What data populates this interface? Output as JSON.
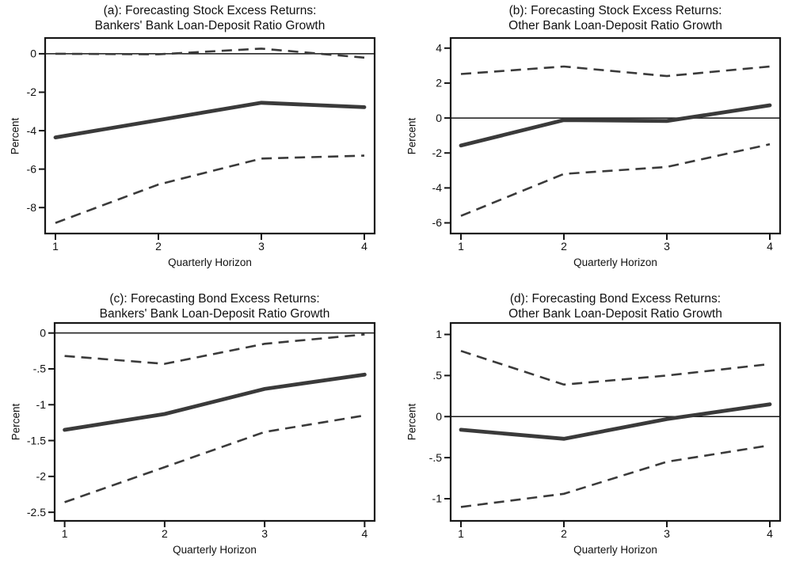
{
  "page": {
    "background": "#ffffff"
  },
  "colors": {
    "series_line": "#3a3a3a",
    "axis": "#161616",
    "text": "#111111"
  },
  "chart_data": [
    {
      "id": "a",
      "type": "line",
      "title_line1": "(a): Forecasting Stock Excess Returns:",
      "title_line2": "Bankers' Bank Loan-Deposit Ratio Growth",
      "ylabel": "Percent",
      "xlabel": "Quarterly Horizon",
      "x": [
        1,
        2,
        3,
        4
      ],
      "xlim": [
        0.9,
        4.1
      ],
      "ylim": [
        -9.35,
        0.82
      ],
      "xtick_values": [
        1,
        2,
        3,
        4
      ],
      "xtick_labels": [
        "1",
        "2",
        "3",
        "4"
      ],
      "ytick_values": [
        0,
        -2,
        -4,
        -6,
        -8
      ],
      "ytick_labels": [
        "0",
        "-2",
        "-4",
        "-6",
        "-8"
      ],
      "zero_line": true,
      "grid": false,
      "legend": "none",
      "series": [
        {
          "name": "upper-confidence-band",
          "style": "dashed",
          "values": [
            0.0,
            -0.03,
            0.27,
            -0.2
          ]
        },
        {
          "name": "lower-confidence-band",
          "style": "dashed",
          "values": [
            -8.8,
            -6.8,
            -5.45,
            -5.3
          ]
        },
        {
          "name": "point-estimate",
          "style": "solid",
          "values": [
            -4.35,
            -3.45,
            -2.55,
            -2.78
          ]
        }
      ]
    },
    {
      "id": "b",
      "type": "line",
      "title_line1": "(b): Forecasting Stock Excess Returns:",
      "title_line2": "Other Bank Loan-Deposit Ratio Growth",
      "ylabel": "Percent",
      "xlabel": "Quarterly Horizon",
      "x": [
        1,
        2,
        3,
        4
      ],
      "xlim": [
        0.9,
        4.1
      ],
      "ylim": [
        -6.61,
        4.58
      ],
      "xtick_values": [
        1,
        2,
        3,
        4
      ],
      "xtick_labels": [
        "1",
        "2",
        "3",
        "4"
      ],
      "ytick_values": [
        4,
        2,
        0,
        -2,
        -4,
        -6
      ],
      "ytick_labels": [
        "4",
        "2",
        "0",
        "-2",
        "-4",
        "-6"
      ],
      "zero_line": true,
      "grid": false,
      "legend": "none",
      "series": [
        {
          "name": "upper-confidence-band",
          "style": "dashed",
          "values": [
            2.52,
            2.95,
            2.4,
            2.95
          ]
        },
        {
          "name": "lower-confidence-band",
          "style": "dashed",
          "values": [
            -5.6,
            -3.2,
            -2.8,
            -1.5
          ]
        },
        {
          "name": "point-estimate",
          "style": "solid",
          "values": [
            -1.57,
            -0.12,
            -0.17,
            0.73
          ]
        }
      ]
    },
    {
      "id": "c",
      "type": "line",
      "title_line1": "(c): Forecasting Bond Excess Returns:",
      "title_line2": "Bankers' Bank Loan-Deposit Ratio Growth",
      "ylabel": "Percent",
      "xlabel": "Quarterly Horizon",
      "x": [
        1,
        2,
        3,
        4
      ],
      "xlim": [
        0.9,
        4.1
      ],
      "ylim": [
        -2.62,
        0.14
      ],
      "xtick_values": [
        1,
        2,
        3,
        4
      ],
      "xtick_labels": [
        "1",
        "2",
        "3",
        "4"
      ],
      "ytick_values": [
        0,
        -0.5,
        -1,
        -1.5,
        -2,
        -2.5
      ],
      "ytick_labels": [
        "0",
        "-.5",
        "-1",
        "-1.5",
        "-2",
        "-2.5"
      ],
      "zero_line": true,
      "grid": false,
      "legend": "none",
      "series": [
        {
          "name": "upper-confidence-band",
          "style": "dashed",
          "values": [
            -0.32,
            -0.43,
            -0.15,
            -0.02
          ]
        },
        {
          "name": "lower-confidence-band",
          "style": "dashed",
          "values": [
            -2.36,
            -1.87,
            -1.38,
            -1.15
          ]
        },
        {
          "name": "point-estimate",
          "style": "solid",
          "values": [
            -1.35,
            -1.13,
            -0.78,
            -0.58
          ]
        }
      ]
    },
    {
      "id": "d",
      "type": "line",
      "title_line1": "(d): Forecasting Bond Excess Returns:",
      "title_line2": "Other Bank Loan-Deposit Ratio Growth",
      "ylabel": "Percent",
      "xlabel": "Quarterly Horizon",
      "x": [
        1,
        2,
        3,
        4
      ],
      "xlim": [
        0.9,
        4.1
      ],
      "ylim": [
        -1.27,
        1.14
      ],
      "xtick_values": [
        1,
        2,
        3,
        4
      ],
      "xtick_labels": [
        "1",
        "2",
        "3",
        "4"
      ],
      "ytick_values": [
        1,
        0.5,
        0,
        -0.5,
        -1
      ],
      "ytick_labels": [
        "1",
        ".5",
        "0",
        "-.5",
        "-1"
      ],
      "zero_line": true,
      "grid": false,
      "legend": "none",
      "series": [
        {
          "name": "upper-confidence-band",
          "style": "dashed",
          "values": [
            0.8,
            0.39,
            0.5,
            0.64
          ]
        },
        {
          "name": "lower-confidence-band",
          "style": "dashed",
          "values": [
            -1.1,
            -0.94,
            -0.55,
            -0.35
          ]
        },
        {
          "name": "point-estimate",
          "style": "solid",
          "values": [
            -0.16,
            -0.27,
            -0.03,
            0.15
          ]
        }
      ]
    }
  ]
}
